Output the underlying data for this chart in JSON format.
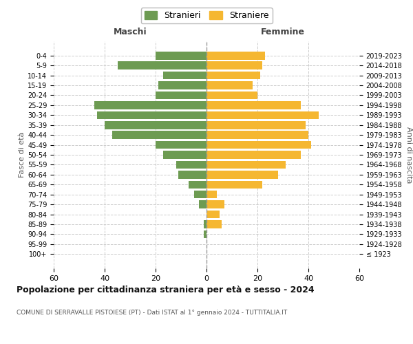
{
  "age_groups": [
    "100+",
    "95-99",
    "90-94",
    "85-89",
    "80-84",
    "75-79",
    "70-74",
    "65-69",
    "60-64",
    "55-59",
    "50-54",
    "45-49",
    "40-44",
    "35-39",
    "30-34",
    "25-29",
    "20-24",
    "15-19",
    "10-14",
    "5-9",
    "0-4"
  ],
  "birth_years": [
    "≤ 1923",
    "1924-1928",
    "1929-1933",
    "1934-1938",
    "1939-1943",
    "1944-1948",
    "1949-1953",
    "1954-1958",
    "1959-1963",
    "1964-1968",
    "1969-1973",
    "1974-1978",
    "1979-1983",
    "1984-1988",
    "1989-1993",
    "1994-1998",
    "1999-2003",
    "2004-2008",
    "2009-2013",
    "2014-2018",
    "2019-2023"
  ],
  "maschi": [
    0,
    0,
    1,
    1,
    0,
    3,
    5,
    7,
    11,
    12,
    17,
    20,
    37,
    40,
    43,
    44,
    20,
    19,
    17,
    35,
    20
  ],
  "femmine": [
    0,
    0,
    0,
    6,
    5,
    7,
    4,
    22,
    28,
    31,
    37,
    41,
    40,
    39,
    44,
    37,
    20,
    18,
    21,
    22,
    23
  ],
  "maschi_color": "#6d9b52",
  "femmine_color": "#f5b731",
  "background_color": "#ffffff",
  "grid_color": "#cccccc",
  "title": "Popolazione per cittadinanza straniera per età e sesso - 2024",
  "subtitle": "COMUNE DI SERRAVALLE PISTOIESE (PT) - Dati ISTAT al 1° gennaio 2024 - TUTTITALIA.IT",
  "xlabel_left": "Maschi",
  "xlabel_right": "Femmine",
  "ylabel_left": "Fasce di età",
  "ylabel_right": "Anni di nascita",
  "legend_maschi": "Stranieri",
  "legend_femmine": "Straniere",
  "xlim": 60,
  "bar_height": 0.8
}
